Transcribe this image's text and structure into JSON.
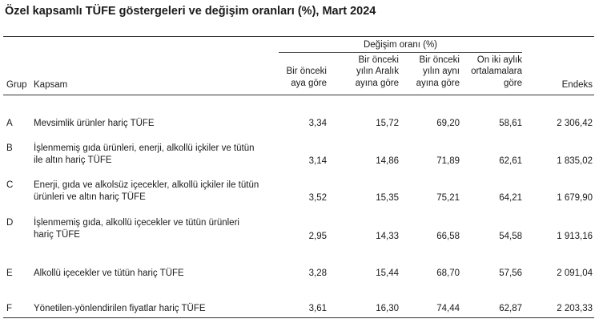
{
  "title": "Özel kapsamlı TÜFE göstergeleri ve değişim oranları (%), Mart 2024",
  "header": {
    "group_label": "Değişim oranı (%)",
    "col_grup": "Grup",
    "col_kapsam": "Kapsam",
    "col_monthly": [
      "Bir önceki",
      "aya göre"
    ],
    "col_december": [
      "Bir önceki",
      "yılın Aralık",
      "ayına göre"
    ],
    "col_yearly": [
      "Bir önceki",
      "yılın aynı",
      "ayına göre"
    ],
    "col_average": [
      "On iki aylık",
      "ortalamalara",
      "göre"
    ],
    "col_endeks": "Endeks"
  },
  "rows": [
    {
      "grup": "A",
      "kapsam": [
        "Mevsimlik ürünler hariç TÜFE"
      ],
      "monthly": "3,34",
      "december": "15,72",
      "yearly": "69,20",
      "average": "58,61",
      "endeks": "2 306,42"
    },
    {
      "grup": "B",
      "kapsam": [
        "İşlenmemiş gıda ürünleri, enerji, alkollü içkiler ve tütün",
        "ile altın hariç TÜFE"
      ],
      "monthly": "3,14",
      "december": "14,86",
      "yearly": "71,89",
      "average": "62,61",
      "endeks": "1 835,02"
    },
    {
      "grup": "C",
      "kapsam": [
        "Enerji, gıda ve alkolsüz içecekler, alkollü içkiler ile tütün",
        "ürünleri ve altın hariç TÜFE"
      ],
      "monthly": "3,52",
      "december": "15,35",
      "yearly": "75,21",
      "average": "64,21",
      "endeks": "1 679,90"
    },
    {
      "grup": "D",
      "kapsam": [
        "İşlenmemiş gıda, alkollü içecekler ve tütün ürünleri",
        "hariç TÜFE"
      ],
      "monthly": "2,95",
      "december": "14,33",
      "yearly": "66,58",
      "average": "54,58",
      "endeks": "1 913,16"
    },
    {
      "grup": "E",
      "kapsam": [
        "Alkollü içecekler ve tütün hariç TÜFE"
      ],
      "monthly": "3,28",
      "december": "15,44",
      "yearly": "68,70",
      "average": "57,56",
      "endeks": "2 091,04"
    },
    {
      "grup": "F",
      "kapsam": [
        "Yönetilen-yönlendirilen fiyatlar hariç TÜFE"
      ],
      "monthly": "3,61",
      "december": "16,30",
      "yearly": "74,44",
      "average": "62,87",
      "endeks": "2 203,33"
    }
  ]
}
